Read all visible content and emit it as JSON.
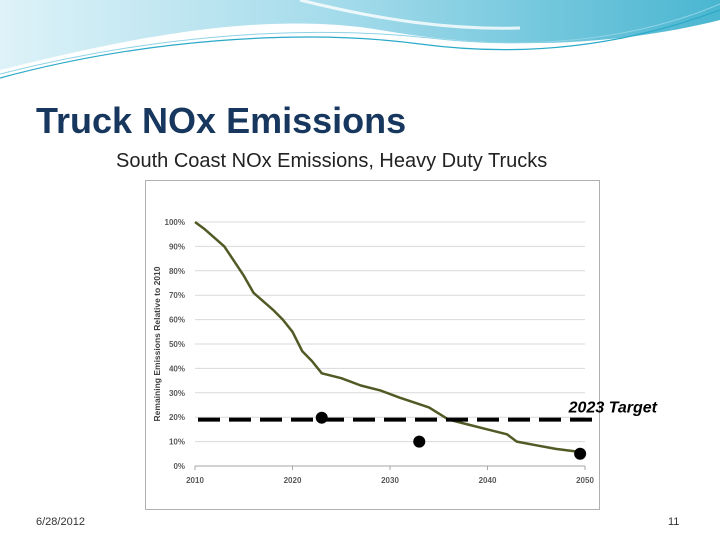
{
  "slide": {
    "title": "Truck NOx Emissions",
    "caption": "South Coast NOx Emissions, Heavy Duty Trucks",
    "date": "6/28/2012",
    "page_number": "11"
  },
  "colors": {
    "title": "#17375e",
    "line": "#4f5a24",
    "target": "#000000",
    "banner_light": "#bfe6f2",
    "banner_dark": "#2aa9c8"
  },
  "chart_data": {
    "type": "line",
    "title": "",
    "xlabel": "",
    "ylabel": "Remaining Emissions Relative to 2010",
    "xlim": [
      2010,
      2050
    ],
    "ylim": [
      0,
      100
    ],
    "x_ticks": [
      2010,
      2020,
      2030,
      2040,
      2050
    ],
    "y_ticks": [
      0,
      10,
      20,
      30,
      40,
      50,
      60,
      70,
      80,
      90,
      100
    ],
    "y_tick_labels": [
      "0%",
      "10%",
      "20%",
      "30%",
      "40%",
      "50%",
      "60%",
      "70%",
      "80%",
      "90%",
      "100%"
    ],
    "grid": "horizontal",
    "series": [
      {
        "x": [
          2010,
          2011,
          2013,
          2015,
          2016,
          2018,
          2019,
          2020,
          2021,
          2022,
          2023,
          2025,
          2027,
          2029,
          2031,
          2034,
          2036,
          2038,
          2040,
          2042,
          2043,
          2045,
          2047,
          2049,
          2050
        ],
        "y": [
          100,
          97,
          90,
          78,
          71,
          64,
          60,
          55,
          47,
          43,
          38,
          36,
          33,
          31,
          28,
          24,
          19,
          17,
          15,
          13,
          10,
          8.5,
          7,
          6,
          5.5
        ]
      }
    ],
    "target_line": {
      "label": "2023 Target",
      "value": 19
    },
    "points": [
      {
        "x": 2023,
        "y": 19.8
      },
      {
        "x": 2033,
        "y": 10
      },
      {
        "x": 2049.5,
        "y": 5
      }
    ]
  }
}
